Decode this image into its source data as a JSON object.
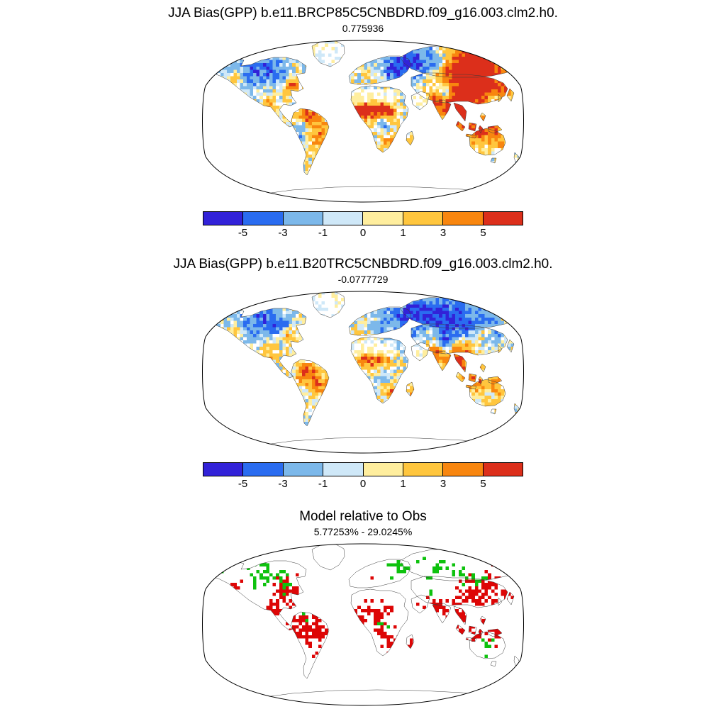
{
  "figure": {
    "background": "#ffffff",
    "palette": [
      "#3222d8",
      "#2a6cf0",
      "#7cb8ea",
      "#cfe8f8",
      "#ffee9e",
      "#ffc63e",
      "#f8860f",
      "#dc2f1b"
    ],
    "thresholds": [
      -5,
      -3,
      -1,
      0,
      1,
      3,
      5
    ]
  },
  "colorbar": {
    "labels": [
      "-5",
      "-3",
      "-1",
      "0",
      "1",
      "3",
      "5"
    ]
  },
  "panels": [
    {
      "title": "JJA Bias(GPP) b.e11.BRCP85C5CNBDRD.f09_g16.003.clm2.h0.",
      "subtitle": "0.775936",
      "type": "bias",
      "pattern": {
        "seed": 11,
        "blobs": [
          [
            383,
            37,
            38,
            6.5
          ],
          [
            394,
            56,
            26,
            6
          ],
          [
            432,
            70,
            14,
            5
          ],
          [
            373,
            83,
            20,
            5
          ],
          [
            360,
            100,
            16,
            6
          ],
          [
            377,
            123,
            26,
            5
          ],
          [
            415,
            132,
            12,
            5
          ],
          [
            330,
            93,
            16,
            6
          ],
          [
            342,
            77,
            9,
            -4
          ],
          [
            281,
            37,
            30,
            -4
          ],
          [
            310,
            42,
            26,
            -3.5
          ],
          [
            350,
            52,
            18,
            3
          ],
          [
            330,
            30,
            18,
            -2
          ],
          [
            317,
            56,
            20,
            2.5
          ],
          [
            249,
            56,
            14,
            1.5
          ],
          [
            265,
            48,
            10,
            -2
          ],
          [
            222,
            100,
            14,
            6
          ],
          [
            243,
            100,
            14,
            6
          ],
          [
            262,
            102,
            12,
            5
          ],
          [
            218,
            108,
            8,
            5
          ],
          [
            258,
            122,
            10,
            -3
          ],
          [
            272,
            118,
            10,
            2
          ],
          [
            268,
            146,
            14,
            2.5
          ],
          [
            296,
            146,
            6,
            3
          ],
          [
            75,
            45,
            28,
            -3.5
          ],
          [
            105,
            50,
            20,
            -3
          ],
          [
            35,
            40,
            14,
            -2
          ],
          [
            48,
            55,
            8,
            3
          ],
          [
            128,
            69,
            12,
            4.5
          ],
          [
            100,
            75,
            16,
            1.5
          ],
          [
            95,
            98,
            12,
            3
          ],
          [
            151,
            113,
            16,
            6
          ],
          [
            143,
            125,
            10,
            -4.5
          ],
          [
            170,
            135,
            14,
            4
          ],
          [
            163,
            160,
            16,
            1.5
          ],
          [
            138,
            140,
            6,
            -3
          ],
          [
            393,
            133,
            8,
            4
          ],
          [
            424,
            150,
            7,
            3.5
          ],
          [
            402,
            152,
            22,
            1
          ],
          [
            168,
            30,
            10,
            -2
          ]
        ],
        "calm": [
          [
            222,
            84,
            11
          ],
          [
            242,
            84,
            13
          ],
          [
            263,
            84,
            11
          ],
          [
            307,
            88,
            14
          ],
          [
            180,
            24,
            26
          ]
        ]
      }
    },
    {
      "title": "JJA Bias(GPP) b.e11.B20TRC5CNBDRD.f09_g16.003.clm2.h0.",
      "subtitle": "-0.0777729",
      "type": "bias",
      "pattern": {
        "seed": 23,
        "blobs": [
          [
            290,
            40,
            34,
            -4.5
          ],
          [
            330,
            40,
            30,
            -4
          ],
          [
            370,
            45,
            32,
            -4
          ],
          [
            410,
            55,
            26,
            -3
          ],
          [
            430,
            45,
            10,
            3
          ],
          [
            398,
            62,
            14,
            3.5
          ],
          [
            318,
            60,
            16,
            3
          ],
          [
            373,
            83,
            16,
            4
          ],
          [
            360,
            100,
            14,
            5.5
          ],
          [
            330,
            93,
            15,
            5.5
          ],
          [
            342,
            77,
            9,
            -4
          ],
          [
            377,
            123,
            20,
            4
          ],
          [
            415,
            132,
            10,
            4
          ],
          [
            250,
            55,
            12,
            -1
          ],
          [
            222,
            63,
            8,
            2
          ],
          [
            230,
            100,
            14,
            4
          ],
          [
            252,
            100,
            14,
            4
          ],
          [
            258,
            122,
            10,
            -2.5
          ],
          [
            268,
            146,
            12,
            3.5
          ],
          [
            296,
            146,
            6,
            3
          ],
          [
            80,
            45,
            30,
            -3.5
          ],
          [
            110,
            50,
            18,
            -2.5
          ],
          [
            126,
            70,
            12,
            3.5
          ],
          [
            52,
            62,
            8,
            3
          ],
          [
            98,
            78,
            14,
            1.5
          ],
          [
            95,
            98,
            10,
            3
          ],
          [
            152,
            120,
            18,
            5
          ],
          [
            170,
            140,
            12,
            3.5
          ],
          [
            160,
            165,
            14,
            1
          ],
          [
            393,
            133,
            7,
            3
          ],
          [
            402,
            152,
            22,
            1
          ],
          [
            424,
            150,
            6,
            2.5
          ],
          [
            168,
            30,
            10,
            -2
          ]
        ],
        "calm": [
          [
            222,
            84,
            11
          ],
          [
            242,
            84,
            13
          ],
          [
            263,
            84,
            11
          ],
          [
            307,
            88,
            14
          ],
          [
            180,
            24,
            26
          ]
        ]
      }
    },
    {
      "title": "Model relative to Obs",
      "subtitle": "5.77253% - 29.0245%",
      "type": "significance",
      "colors": {
        "red": "#dd0606",
        "green": "#0ec20e"
      },
      "pattern": {
        "seed": 37,
        "red": [
          [
            125,
            72,
            18,
            0.9
          ],
          [
            100,
            95,
            14,
            0.8
          ],
          [
            48,
            60,
            8,
            0.5
          ],
          [
            152,
            122,
            24,
            0.9
          ],
          [
            172,
            130,
            10,
            0.8
          ],
          [
            168,
            152,
            10,
            0.6
          ],
          [
            228,
            103,
            16,
            0.85
          ],
          [
            250,
            103,
            14,
            0.8
          ],
          [
            258,
            128,
            12,
            0.6
          ],
          [
            268,
            147,
            12,
            0.7
          ],
          [
            296,
            146,
            5,
            0.8
          ],
          [
            332,
            95,
            16,
            0.9
          ],
          [
            360,
            100,
            14,
            0.9
          ],
          [
            385,
            80,
            20,
            0.9
          ],
          [
            430,
            72,
            12,
            0.8
          ],
          [
            405,
            60,
            14,
            0.7
          ],
          [
            377,
            124,
            20,
            0.85
          ],
          [
            415,
            132,
            10,
            0.8
          ],
          [
            400,
            112,
            7,
            0.8
          ],
          [
            393,
            134,
            6,
            0.5
          ],
          [
            424,
            148,
            6,
            0.5
          ],
          [
            428,
            45,
            10,
            0.5
          ],
          [
            240,
            55,
            6,
            0.3
          ]
        ],
        "green": [
          [
            85,
            48,
            20,
            0.55
          ],
          [
            115,
            58,
            12,
            0.5
          ],
          [
            45,
            42,
            10,
            0.4
          ],
          [
            285,
            40,
            14,
            0.45
          ],
          [
            330,
            40,
            16,
            0.4
          ],
          [
            360,
            48,
            12,
            0.35
          ],
          [
            318,
            60,
            10,
            0.3
          ],
          [
            145,
            118,
            12,
            0.3
          ],
          [
            138,
            140,
            6,
            0.3
          ],
          [
            256,
            120,
            10,
            0.35
          ],
          [
            262,
            140,
            8,
            0.3
          ],
          [
            400,
            150,
            12,
            0.35
          ],
          [
            390,
            55,
            10,
            0.3
          ]
        ]
      }
    }
  ],
  "chart_data": [
    {
      "type": "heatmap",
      "subtype": "global-map-robinson",
      "title": "JJA Bias(GPP) b.e11.BRCP85C5CNBDRD.f09_g16.003.clm2.h0.",
      "annotation_value": "0.775936",
      "colorbar_ticks": [
        -5,
        -3,
        -1,
        0,
        1,
        3,
        5
      ],
      "palette": [
        "#3222d8",
        "#2a6cf0",
        "#7cb8ea",
        "#cfe8f8",
        "#ffee9e",
        "#ffc63e",
        "#f8860f",
        "#dc2f1b"
      ],
      "notable_regions": [
        {
          "region": "East Siberia / Northeast Asia",
          "bias": "strongly positive (>5)"
        },
        {
          "region": "India / Southeast Asia / Maritime Continent",
          "bias": "strongly positive (>5)"
        },
        {
          "region": "Sahel and Guinea coast",
          "bias": "strongly positive"
        },
        {
          "region": "Northern Europe / Western Russia",
          "bias": "negative (-3 to -5)"
        },
        {
          "region": "Boreal North America",
          "bias": "negative"
        },
        {
          "region": "Western Amazon",
          "bias": "negative"
        },
        {
          "region": "Amazon rim / East Brazil",
          "bias": "positive"
        },
        {
          "region": "Sahara / Arabia / Greenland interior",
          "bias": "near zero (white)"
        }
      ]
    },
    {
      "type": "heatmap",
      "subtype": "global-map-robinson",
      "title": "JJA Bias(GPP) b.e11.B20TRC5CNBDRD.f09_g16.003.clm2.h0.",
      "annotation_value": "-0.0777729",
      "colorbar_ticks": [
        -5,
        -3,
        -1,
        0,
        1,
        3,
        5
      ],
      "palette": [
        "#3222d8",
        "#2a6cf0",
        "#7cb8ea",
        "#cfe8f8",
        "#ffee9e",
        "#ffc63e",
        "#f8860f",
        "#dc2f1b"
      ],
      "notable_regions": [
        {
          "region": "Boreal Eurasia (broad)",
          "bias": "negative (-3 to -5)"
        },
        {
          "region": "Boreal North America",
          "bias": "negative"
        },
        {
          "region": "India / Southeast Asia",
          "bias": "strongly positive"
        },
        {
          "region": "Amazon",
          "bias": "positive"
        },
        {
          "region": "Sahel",
          "bias": "positive"
        },
        {
          "region": "Sahara / Arabia / Greenland interior",
          "bias": "near zero (white)"
        }
      ]
    },
    {
      "type": "categorical-map",
      "subtype": "global-map-robinson",
      "title": "Model relative to Obs",
      "annotation_value": "5.77253% - 29.0245%",
      "categories": [
        {
          "color": "#dd0606",
          "name": "red-regions"
        },
        {
          "color": "#0ec20e",
          "name": "green-regions"
        }
      ],
      "notable_regions": [
        {
          "region": "Eastern North America, Amazon, Sahel, India, East/Southeast Asia, Maritime Continent",
          "category": "red"
        },
        {
          "region": "Boreal Canada, Northern Europe, Western Siberia, scattered tropics and Australia",
          "category": "green"
        }
      ]
    }
  ]
}
